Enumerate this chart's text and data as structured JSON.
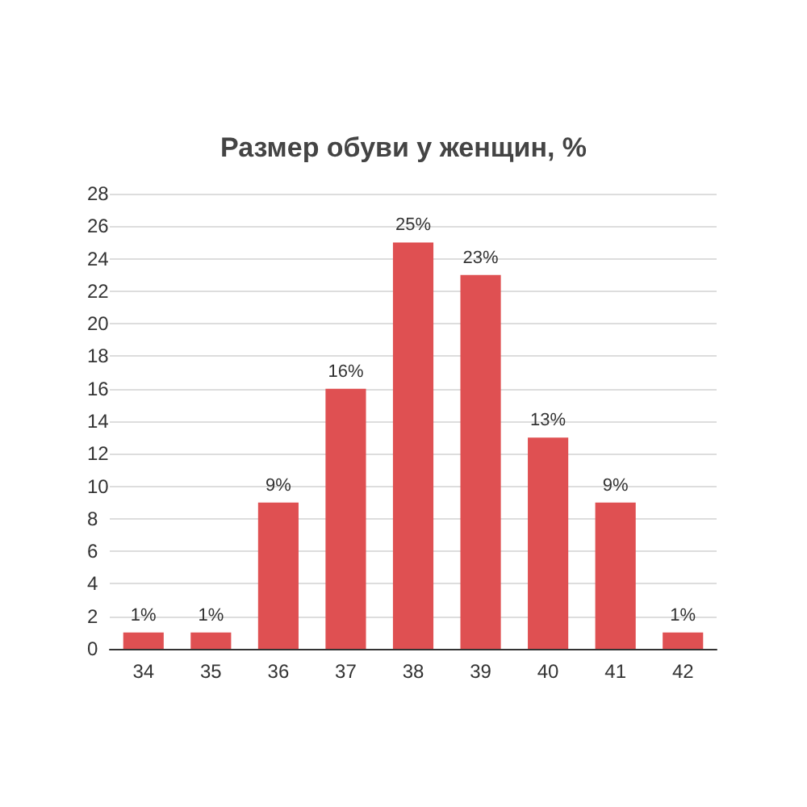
{
  "chart_data": {
    "type": "bar",
    "title": "Размер обуви у женщин, %",
    "categories": [
      "34",
      "35",
      "36",
      "37",
      "38",
      "39",
      "40",
      "41",
      "42"
    ],
    "values": [
      1,
      1,
      9,
      16,
      25,
      23,
      13,
      9,
      1
    ],
    "value_labels": [
      "1%",
      "1%",
      "9%",
      "16%",
      "25%",
      "23%",
      "13%",
      "9%",
      "1%"
    ],
    "color": "#df5052",
    "ylim": [
      0,
      28
    ],
    "yticks": [
      0,
      2,
      4,
      6,
      8,
      10,
      12,
      14,
      16,
      18,
      20,
      22,
      24,
      26,
      28
    ],
    "grid": "y"
  }
}
